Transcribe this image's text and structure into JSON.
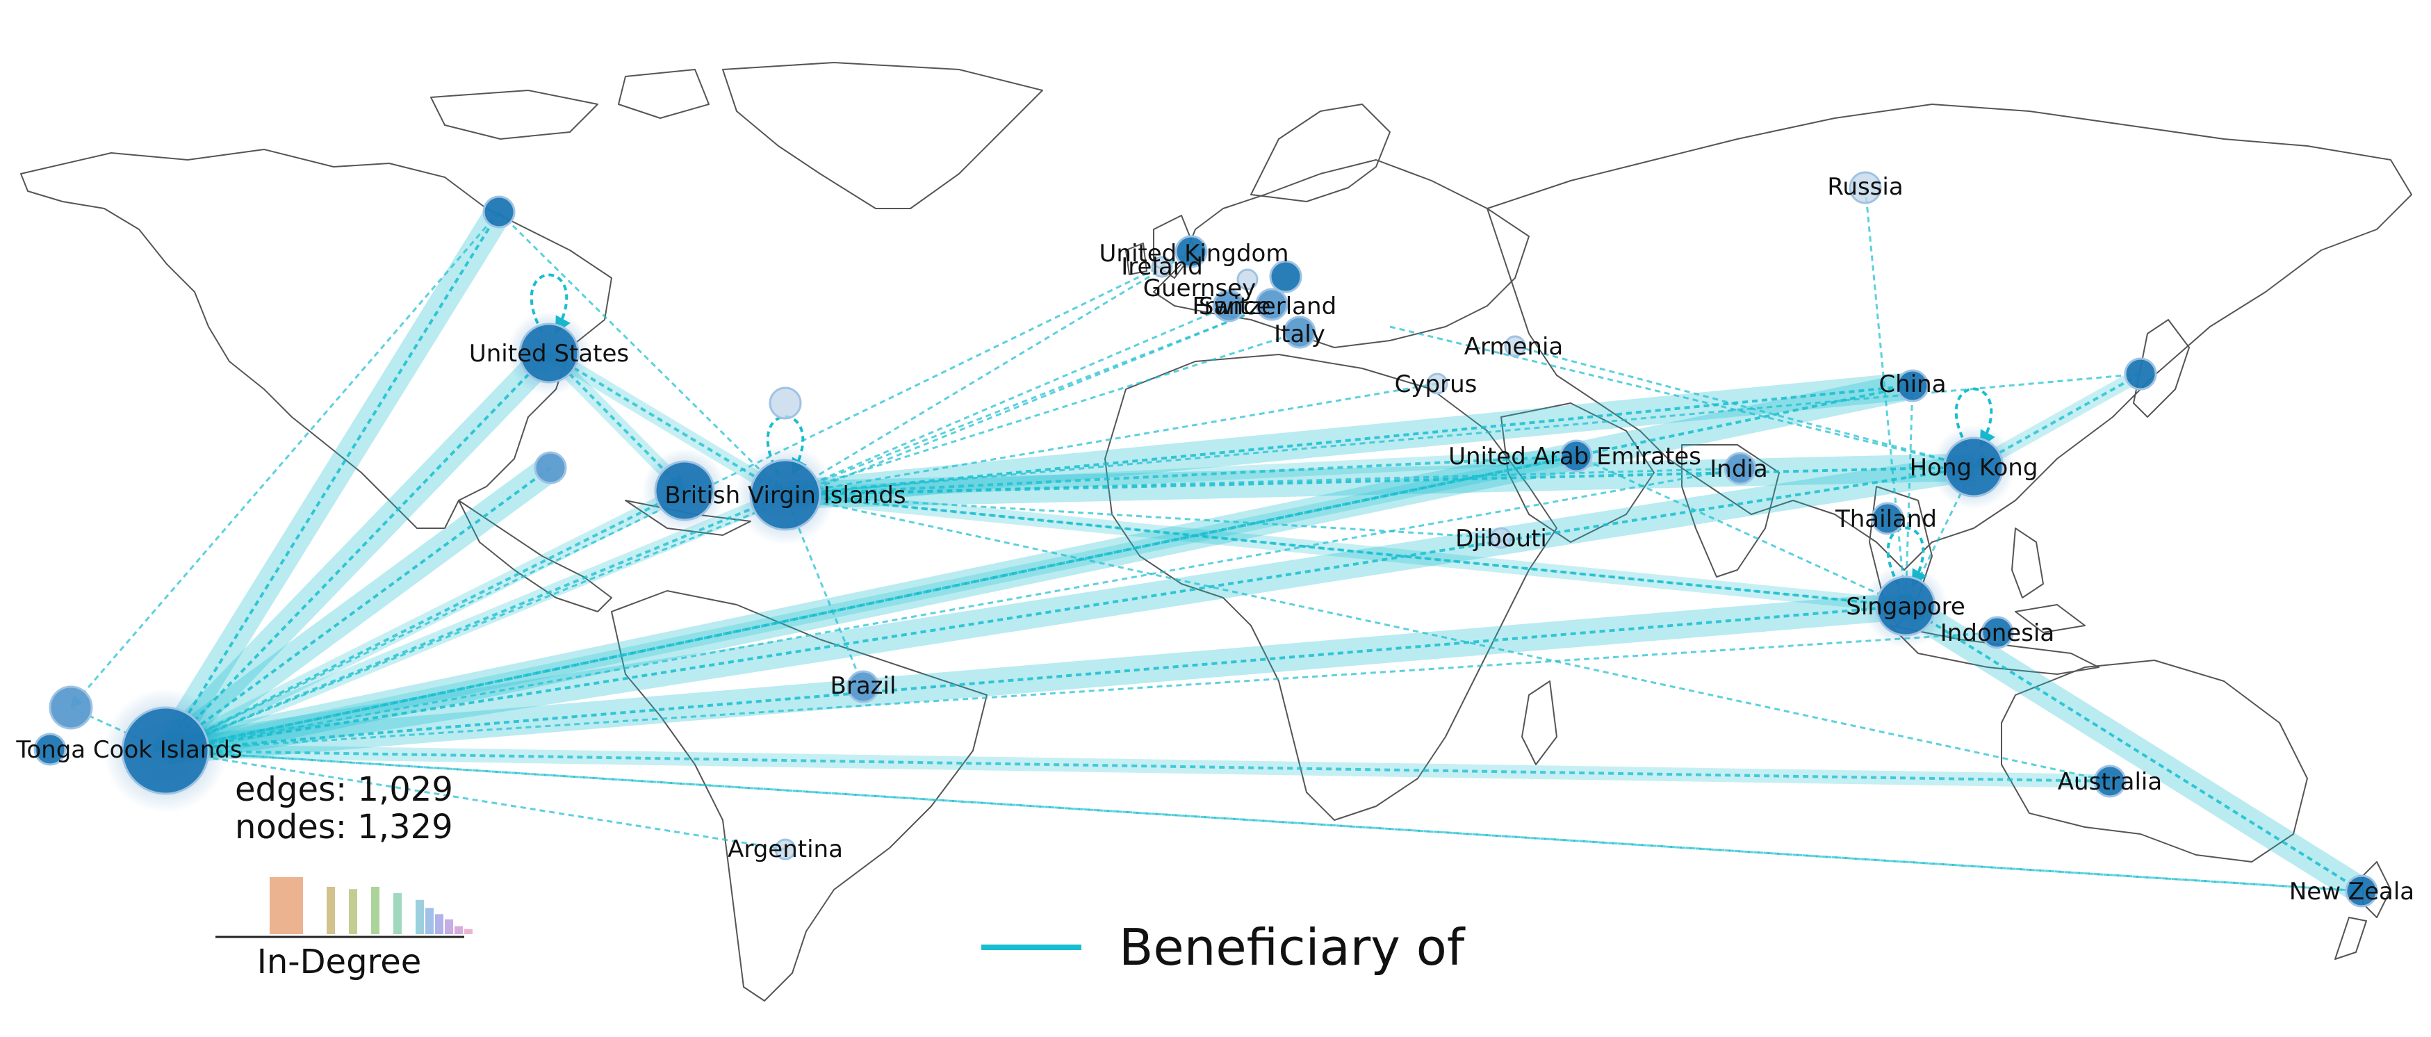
{
  "map": {
    "nodes": [
      {
        "id": "united-states",
        "label": "United States",
        "size": "large",
        "shade": "dark"
      },
      {
        "id": "alaska-north",
        "label": "",
        "size": "small",
        "shade": "dark"
      },
      {
        "id": "mexico",
        "label": "",
        "size": "small",
        "shade": "medium"
      },
      {
        "id": "caribbean-a",
        "label": "",
        "size": "large",
        "shade": "dark"
      },
      {
        "id": "british-virgin-islands",
        "label": "British Virgin Islands",
        "size": "xlarge",
        "shade": "dark"
      },
      {
        "id": "caribbean-light",
        "label": "",
        "size": "small",
        "shade": "light"
      },
      {
        "id": "tonga-cook-islands",
        "label": "Tonga Cook Islands",
        "size": "xxlarge",
        "shade": "dark"
      },
      {
        "id": "tonga-west",
        "label": "",
        "size": "medium",
        "shade": "medium"
      },
      {
        "id": "tonga-small",
        "label": "",
        "size": "small",
        "shade": "dark"
      },
      {
        "id": "brazil",
        "label": "Brazil",
        "size": "small",
        "shade": "medium"
      },
      {
        "id": "argentina",
        "label": "Argentina",
        "size": "tiny",
        "shade": "light"
      },
      {
        "id": "united-kingdom",
        "label": "United Kingdom",
        "size": "small",
        "shade": "dark"
      },
      {
        "id": "ireland",
        "label": "Ireland",
        "size": "tiny",
        "shade": "light"
      },
      {
        "id": "guernsey",
        "label": "Guernsey",
        "size": "tiny",
        "shade": "light"
      },
      {
        "id": "france",
        "label": "France",
        "size": "small",
        "shade": "medium"
      },
      {
        "id": "switzerland",
        "label": "Switzerland",
        "size": "small",
        "shade": "medium"
      },
      {
        "id": "italy",
        "label": "Italy",
        "size": "small",
        "shade": "medium"
      },
      {
        "id": "europe-east",
        "label": "",
        "size": "small",
        "shade": "dark"
      },
      {
        "id": "armenia",
        "label": "Armenia",
        "size": "tiny",
        "shade": "light"
      },
      {
        "id": "cyprus",
        "label": "Cyprus",
        "size": "tiny",
        "shade": "light"
      },
      {
        "id": "united-arab-emirates",
        "label": "United Arab Emirates",
        "size": "small",
        "shade": "dark"
      },
      {
        "id": "djibouti",
        "label": "Djibouti",
        "size": "tiny",
        "shade": "light"
      },
      {
        "id": "india",
        "label": "India",
        "size": "small",
        "shade": "medium"
      },
      {
        "id": "russia",
        "label": "Russia",
        "size": "small",
        "shade": "light"
      },
      {
        "id": "china",
        "label": "China",
        "size": "small",
        "shade": "dark"
      },
      {
        "id": "hong-kong",
        "label": "Hong Kong",
        "size": "large",
        "shade": "dark"
      },
      {
        "id": "japan",
        "label": "",
        "size": "small",
        "shade": "dark"
      },
      {
        "id": "thailand",
        "label": "Thailand",
        "size": "small",
        "shade": "dark"
      },
      {
        "id": "singapore",
        "label": "Singapore",
        "size": "large",
        "shade": "dark"
      },
      {
        "id": "indonesia",
        "label": "Indonesia",
        "size": "small",
        "shade": "dark"
      },
      {
        "id": "australia",
        "label": "Australia",
        "size": "small",
        "shade": "dark"
      },
      {
        "id": "new-zealand",
        "label": "New Zeala",
        "size": "small",
        "shade": "dark"
      }
    ],
    "edges": [
      {
        "from": "alaska-north",
        "to": "tonga-cook-islands",
        "weight": "heavy"
      },
      {
        "from": "united-states",
        "to": "tonga-cook-islands",
        "weight": "heavy"
      },
      {
        "from": "mexico",
        "to": "tonga-cook-islands",
        "weight": "heavy"
      },
      {
        "from": "united-states",
        "to": "caribbean-a",
        "weight": "medium"
      },
      {
        "from": "united-states",
        "to": "british-virgin-islands",
        "weight": "medium"
      },
      {
        "from": "alaska-north",
        "to": "british-virgin-islands",
        "weight": "light"
      },
      {
        "from": "alaska-north",
        "to": "tonga-west",
        "weight": "light"
      },
      {
        "from": "hong-kong",
        "to": "british-virgin-islands",
        "weight": "heavy"
      },
      {
        "from": "china",
        "to": "british-virgin-islands",
        "weight": "heavy"
      },
      {
        "from": "singapore",
        "to": "british-virgin-islands",
        "weight": "medium"
      },
      {
        "from": "united-arab-emirates",
        "to": "british-virgin-islands",
        "weight": "medium"
      },
      {
        "from": "india",
        "to": "british-virgin-islands",
        "weight": "light"
      },
      {
        "from": "japan",
        "to": "british-virgin-islands",
        "weight": "light"
      },
      {
        "from": "united-kingdom",
        "to": "british-virgin-islands",
        "weight": "light"
      },
      {
        "from": "switzerland",
        "to": "british-virgin-islands",
        "weight": "light"
      },
      {
        "from": "france",
        "to": "british-virgin-islands",
        "weight": "light"
      },
      {
        "from": "italy",
        "to": "british-virgin-islands",
        "weight": "light"
      },
      {
        "from": "cyprus",
        "to": "british-virgin-islands",
        "weight": "light"
      },
      {
        "from": "hong-kong",
        "to": "tonga-cook-islands",
        "weight": "heavy"
      },
      {
        "from": "china",
        "to": "tonga-cook-islands",
        "weight": "heavy"
      },
      {
        "from": "singapore",
        "to": "tonga-cook-islands",
        "weight": "heavy"
      },
      {
        "from": "united-arab-emirates",
        "to": "tonga-cook-islands",
        "weight": "medium"
      },
      {
        "from": "india",
        "to": "tonga-cook-islands",
        "weight": "light"
      },
      {
        "from": "indonesia",
        "to": "tonga-cook-islands",
        "weight": "light"
      },
      {
        "from": "australia",
        "to": "tonga-cook-islands",
        "weight": "medium"
      },
      {
        "from": "new-zealand",
        "to": "tonga-cook-islands",
        "weight": "light"
      },
      {
        "from": "switzerland",
        "to": "tonga-cook-islands",
        "weight": "light"
      },
      {
        "from": "united-kingdom",
        "to": "tonga-cook-islands",
        "weight": "light"
      },
      {
        "from": "caribbean-a",
        "to": "tonga-cook-islands",
        "weight": "medium"
      },
      {
        "from": "british-virgin-islands",
        "to": "tonga-cook-islands",
        "weight": "medium"
      },
      {
        "from": "new-zealand",
        "to": "singapore",
        "weight": "heavy"
      },
      {
        "from": "british-virgin-islands",
        "to": "singapore",
        "weight": "light"
      },
      {
        "from": "hong-kong",
        "to": "singapore",
        "weight": "light"
      },
      {
        "from": "china",
        "to": "singapore",
        "weight": "light"
      },
      {
        "from": "russia",
        "to": "singapore",
        "weight": "light"
      },
      {
        "from": "japan",
        "to": "hong-kong",
        "weight": "medium"
      },
      {
        "from": "european-west",
        "to": "hong-kong",
        "weight": "light"
      },
      {
        "from": "brazil",
        "to": "british-virgin-islands",
        "weight": "light"
      },
      {
        "from": "argentina",
        "to": "tonga-cook-islands",
        "weight": "light"
      },
      {
        "from": "tonga-cook-islands",
        "to": "new-zealand",
        "weight": "light"
      },
      {
        "from": "united-arab-emirates",
        "to": "singapore",
        "weight": "light"
      },
      {
        "from": "british-virgin-islands",
        "to": "australia",
        "weight": "light"
      },
      {
        "from": "armenia",
        "to": "hong-kong",
        "weight": "light"
      },
      {
        "from": "djibouti",
        "to": "british-virgin-islands",
        "weight": "light"
      },
      {
        "from": "tonga-west",
        "to": "tonga-cook-islands",
        "weight": "light"
      }
    ],
    "self_loops": [
      "united-states",
      "british-virgin-islands",
      "hong-kong",
      "singapore"
    ]
  },
  "stats": {
    "edges_text": "edges: 1,029",
    "nodes_text": "nodes: 1,329"
  },
  "histogram": {
    "title": "In-Degree",
    "values": [
      1.0,
      0.83,
      0.79,
      0.83,
      0.72,
      0.6,
      0.46,
      0.35,
      0.26,
      0.14,
      0.09
    ],
    "colors": [
      "#e8a67c",
      "#c9b77a",
      "#b8c47f",
      "#9ccc8a",
      "#8fd1b3",
      "#8cc8d8",
      "#91b6e4",
      "#a4a4e6",
      "#bb9fe2",
      "#d19fd8",
      "#e8a8c8"
    ]
  },
  "legend": {
    "label": "Beneficiary of",
    "color": "#17becf"
  },
  "colors": {
    "edge": "#17becf",
    "node_dark": "#1f77b4",
    "node_medium": "#5b9bd0",
    "node_light": "#c0d6ea",
    "land": "#555555"
  }
}
